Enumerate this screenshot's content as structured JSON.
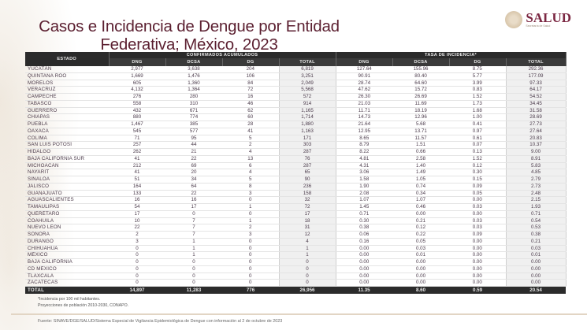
{
  "header": {
    "title_line1": "Casos e Incidencia de Dengue por Entidad",
    "title_line2": "Federativa; México, 2023",
    "logo_text": "SALUD",
    "logo_subtext": "Secretaría de Salud"
  },
  "table": {
    "group_headers": {
      "estado": "ESTADO",
      "confirmados": "CONFIRMADOS ACUMULADOS",
      "tasa": "TASA DE INCIDENCIA*"
    },
    "sub_headers": [
      "DNG",
      "DCSA",
      "DG",
      "TOTAL",
      "DNG",
      "DCSA",
      "DG",
      "TOTAL"
    ],
    "rows": [
      {
        "estado": "YUCATÁN",
        "c_dng": "2,977",
        "c_dcsa": "3,638",
        "c_dg": "204",
        "c_total": "6,819",
        "t_dng": "127.64",
        "t_dcsa": "155.96",
        "t_dg": "8.75",
        "t_total": "292.36"
      },
      {
        "estado": "QUINTANA ROO",
        "c_dng": "1,669",
        "c_dcsa": "1,476",
        "c_dg": "106",
        "c_total": "3,251",
        "t_dng": "90.91",
        "t_dcsa": "80.40",
        "t_dg": "5.77",
        "t_total": "177.09"
      },
      {
        "estado": "MORELOS",
        "c_dng": "605",
        "c_dcsa": "1,360",
        "c_dg": "84",
        "c_total": "2,049",
        "t_dng": "28.74",
        "t_dcsa": "64.60",
        "t_dg": "3.99",
        "t_total": "97.33"
      },
      {
        "estado": "VERACRUZ",
        "c_dng": "4,132",
        "c_dcsa": "1,364",
        "c_dg": "72",
        "c_total": "5,568",
        "t_dng": "47.62",
        "t_dcsa": "15.72",
        "t_dg": "0.83",
        "t_total": "64.17"
      },
      {
        "estado": "CAMPECHE",
        "c_dng": "276",
        "c_dcsa": "280",
        "c_dg": "16",
        "c_total": "572",
        "t_dng": "26.30",
        "t_dcsa": "26.69",
        "t_dg": "1.52",
        "t_total": "54.52"
      },
      {
        "estado": "TABASCO",
        "c_dng": "558",
        "c_dcsa": "310",
        "c_dg": "46",
        "c_total": "914",
        "t_dng": "21.03",
        "t_dcsa": "11.69",
        "t_dg": "1.73",
        "t_total": "34.45"
      },
      {
        "estado": "GUERRERO",
        "c_dng": "432",
        "c_dcsa": "671",
        "c_dg": "62",
        "c_total": "1,165",
        "t_dng": "11.71",
        "t_dcsa": "18.19",
        "t_dg": "1.68",
        "t_total": "31.58"
      },
      {
        "estado": "CHIAPAS",
        "c_dng": "880",
        "c_dcsa": "774",
        "c_dg": "60",
        "c_total": "1,714",
        "t_dng": "14.73",
        "t_dcsa": "12.96",
        "t_dg": "1.00",
        "t_total": "28.69"
      },
      {
        "estado": "PUEBLA",
        "c_dng": "1,467",
        "c_dcsa": "385",
        "c_dg": "28",
        "c_total": "1,880",
        "t_dng": "21.64",
        "t_dcsa": "5.68",
        "t_dg": "0.41",
        "t_total": "27.73"
      },
      {
        "estado": "OAXACA",
        "c_dng": "545",
        "c_dcsa": "577",
        "c_dg": "41",
        "c_total": "1,163",
        "t_dng": "12.95",
        "t_dcsa": "13.71",
        "t_dg": "0.97",
        "t_total": "27.64"
      },
      {
        "estado": "COLIMA",
        "c_dng": "71",
        "c_dcsa": "95",
        "c_dg": "5",
        "c_total": "171",
        "t_dng": "8.65",
        "t_dcsa": "11.57",
        "t_dg": "0.61",
        "t_total": "20.83"
      },
      {
        "estado": "SAN LUIS POTOSÍ",
        "c_dng": "257",
        "c_dcsa": "44",
        "c_dg": "2",
        "c_total": "303",
        "t_dng": "8.79",
        "t_dcsa": "1.51",
        "t_dg": "0.07",
        "t_total": "10.37"
      },
      {
        "estado": "HIDALGO",
        "c_dng": "262",
        "c_dcsa": "21",
        "c_dg": "4",
        "c_total": "287",
        "t_dng": "8.22",
        "t_dcsa": "0.66",
        "t_dg": "0.13",
        "t_total": "9.00"
      },
      {
        "estado": "BAJA CALIFORNIA SUR",
        "c_dng": "41",
        "c_dcsa": "22",
        "c_dg": "13",
        "c_total": "76",
        "t_dng": "4.81",
        "t_dcsa": "2.58",
        "t_dg": "1.52",
        "t_total": "8.91"
      },
      {
        "estado": "MICHOACÁN",
        "c_dng": "212",
        "c_dcsa": "69",
        "c_dg": "6",
        "c_total": "287",
        "t_dng": "4.31",
        "t_dcsa": "1.40",
        "t_dg": "0.12",
        "t_total": "5.83"
      },
      {
        "estado": "NAYARIT",
        "c_dng": "41",
        "c_dcsa": "20",
        "c_dg": "4",
        "c_total": "65",
        "t_dng": "3.06",
        "t_dcsa": "1.49",
        "t_dg": "0.30",
        "t_total": "4.85"
      },
      {
        "estado": "SINALOA",
        "c_dng": "51",
        "c_dcsa": "34",
        "c_dg": "5",
        "c_total": "90",
        "t_dng": "1.58",
        "t_dcsa": "1.05",
        "t_dg": "0.15",
        "t_total": "2.79"
      },
      {
        "estado": "JALISCO",
        "c_dng": "164",
        "c_dcsa": "64",
        "c_dg": "8",
        "c_total": "236",
        "t_dng": "1.90",
        "t_dcsa": "0.74",
        "t_dg": "0.09",
        "t_total": "2.73"
      },
      {
        "estado": "GUANAJUATO",
        "c_dng": "133",
        "c_dcsa": "22",
        "c_dg": "3",
        "c_total": "158",
        "t_dng": "2.08",
        "t_dcsa": "0.34",
        "t_dg": "0.05",
        "t_total": "2.48"
      },
      {
        "estado": "AGUASCALIENTES",
        "c_dng": "16",
        "c_dcsa": "16",
        "c_dg": "0",
        "c_total": "32",
        "t_dng": "1.07",
        "t_dcsa": "1.07",
        "t_dg": "0.00",
        "t_total": "2.15"
      },
      {
        "estado": "TAMAULIPAS",
        "c_dng": "54",
        "c_dcsa": "17",
        "c_dg": "1",
        "c_total": "72",
        "t_dng": "1.45",
        "t_dcsa": "0.46",
        "t_dg": "0.03",
        "t_total": "1.93"
      },
      {
        "estado": "QUERÉTARO",
        "c_dng": "17",
        "c_dcsa": "0",
        "c_dg": "0",
        "c_total": "17",
        "t_dng": "0.71",
        "t_dcsa": "0.00",
        "t_dg": "0.00",
        "t_total": "0.71"
      },
      {
        "estado": "COAHUILA",
        "c_dng": "10",
        "c_dcsa": "7",
        "c_dg": "1",
        "c_total": "18",
        "t_dng": "0.30",
        "t_dcsa": "0.21",
        "t_dg": "0.03",
        "t_total": "0.54"
      },
      {
        "estado": "NUEVO LEÓN",
        "c_dng": "22",
        "c_dcsa": "7",
        "c_dg": "2",
        "c_total": "31",
        "t_dng": "0.38",
        "t_dcsa": "0.12",
        "t_dg": "0.03",
        "t_total": "0.53"
      },
      {
        "estado": "SONORA",
        "c_dng": "2",
        "c_dcsa": "7",
        "c_dg": "3",
        "c_total": "12",
        "t_dng": "0.06",
        "t_dcsa": "0.22",
        "t_dg": "0.09",
        "t_total": "0.38"
      },
      {
        "estado": "DURANGO",
        "c_dng": "3",
        "c_dcsa": "1",
        "c_dg": "0",
        "c_total": "4",
        "t_dng": "0.16",
        "t_dcsa": "0.05",
        "t_dg": "0.00",
        "t_total": "0.21"
      },
      {
        "estado": "CHIHUAHUA",
        "c_dng": "0",
        "c_dcsa": "1",
        "c_dg": "0",
        "c_total": "1",
        "t_dng": "0.00",
        "t_dcsa": "0.03",
        "t_dg": "0.00",
        "t_total": "0.03"
      },
      {
        "estado": "MÉXICO",
        "c_dng": "0",
        "c_dcsa": "1",
        "c_dg": "0",
        "c_total": "1",
        "t_dng": "0.00",
        "t_dcsa": "0.01",
        "t_dg": "0.00",
        "t_total": "0.01"
      },
      {
        "estado": "BAJA CALIFORNIA",
        "c_dng": "0",
        "c_dcsa": "0",
        "c_dg": "0",
        "c_total": "0",
        "t_dng": "0.00",
        "t_dcsa": "0.00",
        "t_dg": "0.00",
        "t_total": "0.00"
      },
      {
        "estado": "CD MÉXICO",
        "c_dng": "0",
        "c_dcsa": "0",
        "c_dg": "0",
        "c_total": "0",
        "t_dng": "0.00",
        "t_dcsa": "0.00",
        "t_dg": "0.00",
        "t_total": "0.00"
      },
      {
        "estado": "TLAXCALA",
        "c_dng": "0",
        "c_dcsa": "0",
        "c_dg": "0",
        "c_total": "0",
        "t_dng": "0.00",
        "t_dcsa": "0.00",
        "t_dg": "0.00",
        "t_total": "0.00"
      },
      {
        "estado": "ZACATECAS",
        "c_dng": "0",
        "c_dcsa": "0",
        "c_dg": "0",
        "c_total": "0",
        "t_dng": "0.00",
        "t_dcsa": "0.00",
        "t_dg": "0.00",
        "t_total": "0.00"
      }
    ],
    "total_row": {
      "estado": "TOTAL",
      "c_dng": "14,897",
      "c_dcsa": "11,283",
      "c_dg": "776",
      "c_total": "26,956",
      "t_dng": "11.35",
      "t_dcsa": "8.60",
      "t_dg": "0.59",
      "t_total": "20.54"
    }
  },
  "footnotes": {
    "line1": "*Incidencia por 100 mil habitantes.",
    "line2": "Proyecciones de población 2010-2030, CONAPO."
  },
  "source": "Fuente: SINAVE/DGE/SALUD/Sistema Especial de Vigilancia Epidemiológica de Dengue con información al 2 de octubre de 2023",
  "colors": {
    "title": "#5b1f30",
    "logo": "#7b2742",
    "header_bg": "#2b2b2b",
    "header_text": "#e8e8e8",
    "cell_text": "#4a3a4a",
    "total_col_bg": "#f0f0f0"
  }
}
